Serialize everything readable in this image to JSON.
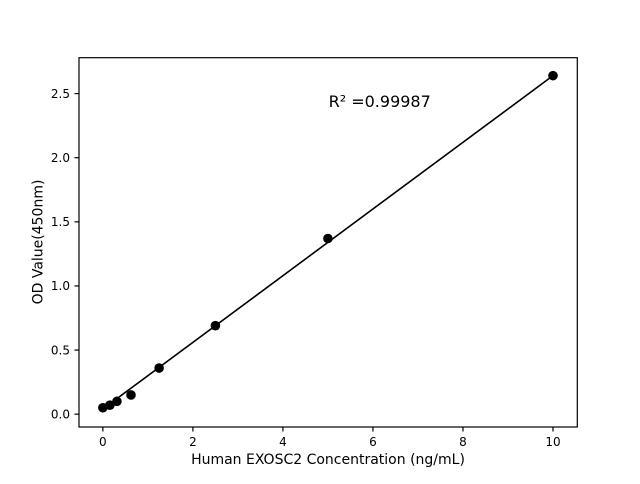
{
  "chart_data": {
    "type": "scatter",
    "title": "",
    "xlabel": "Human EXOSC2 Concentration (ng/mL)",
    "ylabel": "OD Value(450nm)",
    "x": [
      0,
      0.156,
      0.3125,
      0.625,
      1.25,
      2.5,
      5,
      10
    ],
    "y": [
      0.05,
      0.07,
      0.1,
      0.15,
      0.36,
      0.69,
      1.37,
      2.64
    ],
    "fit_line": {
      "x": [
        0,
        10
      ],
      "y": [
        0.04,
        2.64
      ]
    },
    "annotation": {
      "text": "R² =0.99987",
      "x": 6.15,
      "y": 2.44
    },
    "x_ticks": [
      0,
      2,
      4,
      6,
      8,
      10
    ],
    "y_ticks": [
      0.0,
      0.5,
      1.0,
      1.5,
      2.0,
      2.5
    ],
    "xlim": [
      -0.53,
      10.54
    ],
    "ylim": [
      -0.1,
      2.78
    ],
    "grid": false,
    "legend_position": null,
    "marker_color": "#000000",
    "line_color": "#000000",
    "axis_color": "#000000",
    "background_color": "#ffffff",
    "marker_radius": 4.8,
    "line_width": 1.6
  }
}
